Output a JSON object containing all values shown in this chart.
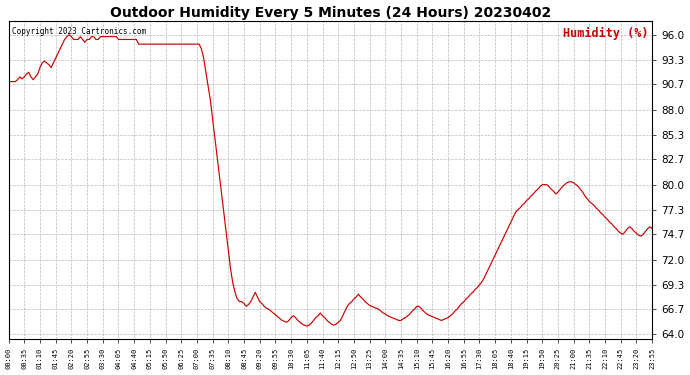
{
  "title": "Outdoor Humidity Every 5 Minutes (24 Hours) 20230402",
  "copyright_text": "Copyright 2023 Cartronics.com",
  "legend_label": "Humidity (%)",
  "line_color": "#cc0000",
  "background_color": "#ffffff",
  "grid_color": "#aaaaaa",
  "ylabel_color": "#cc0000",
  "yticks": [
    64.0,
    66.7,
    69.3,
    72.0,
    74.7,
    77.3,
    80.0,
    82.7,
    85.3,
    88.0,
    90.7,
    93.3,
    96.0
  ],
  "ylim": [
    63.5,
    97.5
  ],
  "xtick_labels": [
    "00:00",
    "00:35",
    "01:10",
    "01:45",
    "02:20",
    "02:55",
    "03:30",
    "04:05",
    "04:40",
    "05:15",
    "05:50",
    "06:25",
    "07:00",
    "07:35",
    "08:10",
    "08:45",
    "09:20",
    "09:55",
    "10:30",
    "11:05",
    "11:40",
    "12:15",
    "12:50",
    "13:25",
    "14:00",
    "14:35",
    "15:10",
    "15:45",
    "16:20",
    "16:55",
    "17:30",
    "18:05",
    "18:40",
    "19:15",
    "19:50",
    "20:25",
    "21:00",
    "21:35",
    "22:10",
    "22:45",
    "23:20",
    "23:55"
  ],
  "humidity_values": [
    91.0,
    91.0,
    91.0,
    91.0,
    91.2,
    91.5,
    91.3,
    91.5,
    91.8,
    92.0,
    91.5,
    91.2,
    91.5,
    91.8,
    92.5,
    93.0,
    93.2,
    93.0,
    92.8,
    92.5,
    93.0,
    93.5,
    94.0,
    94.5,
    95.0,
    95.5,
    95.8,
    96.0,
    95.8,
    95.5,
    95.5,
    95.5,
    95.8,
    95.5,
    95.2,
    95.5,
    95.5,
    95.8,
    95.8,
    95.5,
    95.5,
    95.8,
    95.8,
    95.8,
    95.8,
    95.8,
    95.8,
    95.8,
    95.8,
    95.5,
    95.5,
    95.5,
    95.5,
    95.5,
    95.5,
    95.5,
    95.5,
    95.5,
    95.0,
    95.0,
    95.0,
    95.0,
    95.0,
    95.0,
    95.0,
    95.0,
    95.0,
    95.0,
    95.0,
    95.0,
    95.0,
    95.0,
    95.0,
    95.0,
    95.0,
    95.0,
    95.0,
    95.0,
    95.0,
    95.0,
    95.0,
    95.0,
    95.0,
    95.0,
    95.0,
    95.0,
    94.5,
    93.5,
    92.0,
    90.5,
    89.0,
    87.0,
    85.0,
    83.0,
    81.0,
    79.0,
    77.0,
    75.0,
    73.0,
    71.0,
    69.5,
    68.5,
    67.8,
    67.5,
    67.5,
    67.3,
    67.0,
    67.2,
    67.5,
    68.0,
    68.5,
    68.0,
    67.5,
    67.3,
    67.0,
    66.8,
    66.7,
    66.5,
    66.3,
    66.1,
    65.9,
    65.7,
    65.5,
    65.4,
    65.3,
    65.5,
    65.8,
    66.0,
    65.8,
    65.5,
    65.3,
    65.1,
    65.0,
    64.9,
    65.0,
    65.2,
    65.5,
    65.8,
    66.0,
    66.3,
    66.0,
    65.8,
    65.5,
    65.3,
    65.1,
    65.0,
    65.1,
    65.3,
    65.5,
    66.0,
    66.5,
    67.0,
    67.3,
    67.5,
    67.8,
    68.0,
    68.3,
    68.0,
    67.8,
    67.5,
    67.3,
    67.1,
    67.0,
    66.9,
    66.8,
    66.7,
    66.5,
    66.3,
    66.2,
    66.0,
    65.9,
    65.8,
    65.7,
    65.6,
    65.5,
    65.5,
    65.7,
    65.8,
    66.0,
    66.2,
    66.5,
    66.7,
    67.0,
    67.0,
    66.8,
    66.5,
    66.3,
    66.1,
    66.0,
    65.9,
    65.8,
    65.7,
    65.6,
    65.5,
    65.6,
    65.7,
    65.8,
    66.0,
    66.2,
    66.5,
    66.7,
    67.0,
    67.3,
    67.5,
    67.8,
    68.0,
    68.3,
    68.5,
    68.8,
    69.0,
    69.3,
    69.6,
    70.0,
    70.5,
    71.0,
    71.5,
    72.0,
    72.5,
    73.0,
    73.5,
    74.0,
    74.5,
    75.0,
    75.5,
    76.0,
    76.5,
    77.0,
    77.3,
    77.5,
    77.8,
    78.0,
    78.3,
    78.5,
    78.8,
    79.0,
    79.3,
    79.5,
    79.8,
    80.0,
    80.0,
    80.0,
    79.8,
    79.5,
    79.3,
    79.0,
    79.2,
    79.5,
    79.8,
    80.0,
    80.2,
    80.3,
    80.3,
    80.2,
    80.0,
    79.8,
    79.5,
    79.2,
    78.8,
    78.5,
    78.2,
    78.0,
    77.8,
    77.5,
    77.3,
    77.0,
    76.8,
    76.5,
    76.3,
    76.0,
    75.8,
    75.5,
    75.3,
    75.0,
    74.8,
    74.7,
    75.0,
    75.3,
    75.5,
    75.3,
    75.0,
    74.8,
    74.6,
    74.5,
    74.7,
    75.0,
    75.3,
    75.5,
    75.3,
    75.0
  ]
}
